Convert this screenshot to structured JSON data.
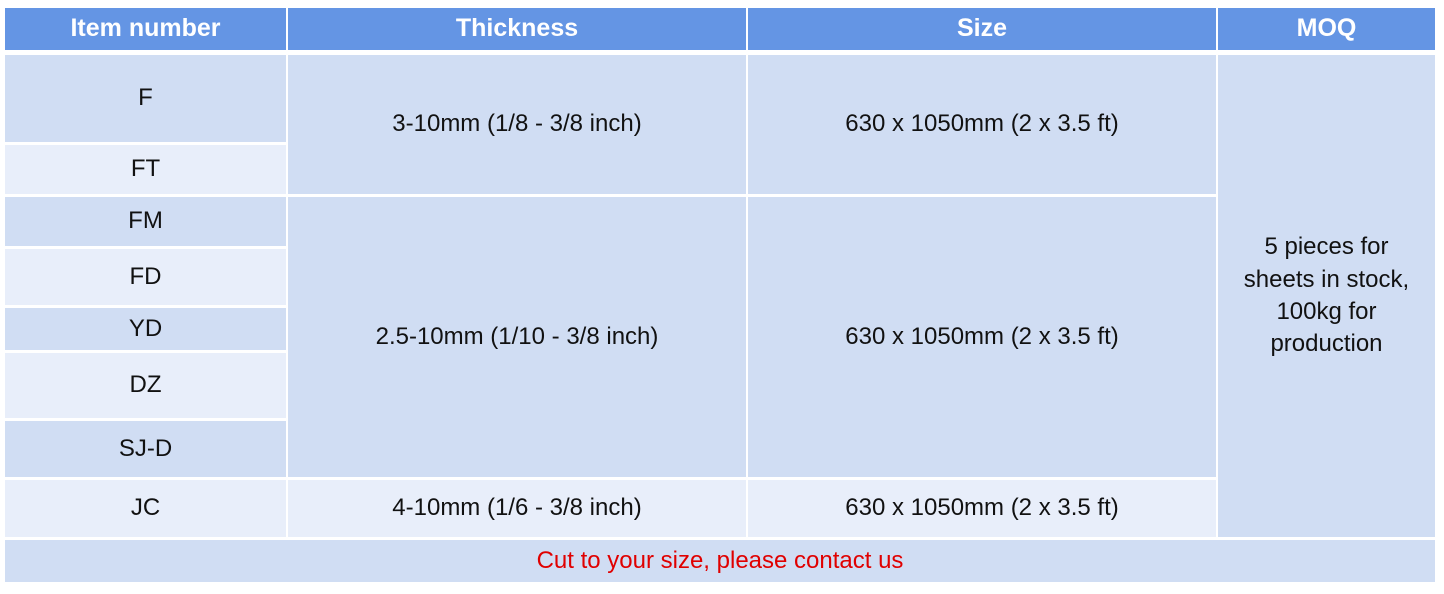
{
  "headers": [
    "Item number",
    "Thickness",
    "Size",
    "MOQ"
  ],
  "items": [
    "F",
    "FT",
    "FM",
    "FD",
    "YD",
    "DZ",
    "SJ-D",
    "JC"
  ],
  "groups": [
    {
      "thickness": "3-10mm (1/8 - 3/8 inch)",
      "size": "630 x 1050mm (2 x 3.5 ft)"
    },
    {
      "thickness": "2.5-10mm (1/10 - 3/8 inch)",
      "size": "630 x 1050mm (2 x 3.5 ft)"
    },
    {
      "thickness": "4-10mm (1/6 - 3/8 inch)",
      "size": "630 x 1050mm (2 x 3.5 ft)"
    }
  ],
  "moq": "5 pieces for sheets in stock, 100kg for production",
  "footer": "Cut to your size, please contact us",
  "colors": {
    "header": "#6495e4",
    "cell_dark": "#d0ddf3",
    "cell_light": "#e8eefa",
    "footer_text": "#e00000"
  }
}
